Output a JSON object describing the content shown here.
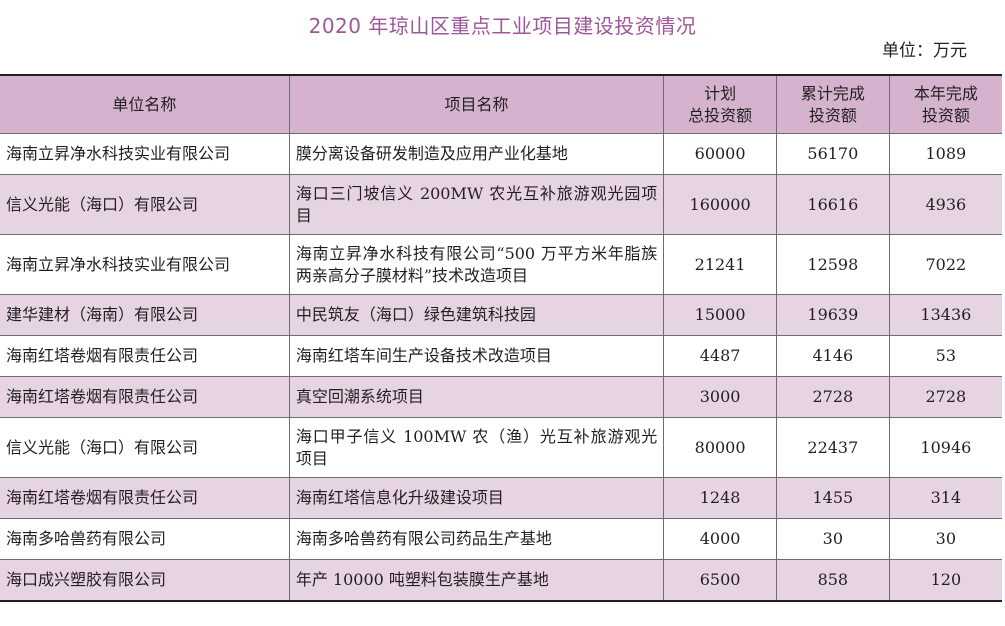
{
  "title": "2020 年琼山区重点工业项目建设投资情况",
  "unit": "单位：万元",
  "table": {
    "headers": [
      {
        "lines": [
          "单位名称"
        ]
      },
      {
        "lines": [
          "项目名称"
        ]
      },
      {
        "lines": [
          "计划",
          "总投资额"
        ]
      },
      {
        "lines": [
          "累计完成",
          "投资额"
        ]
      },
      {
        "lines": [
          "本年完成",
          "投资额"
        ]
      }
    ],
    "rows": [
      {
        "unit": "海南立昇净水科技实业有限公司",
        "project": "膜分离设备研发制造及应用产业化基地",
        "planned": "60000",
        "cumulative": "56170",
        "this_year": "1089"
      },
      {
        "unit": "信义光能（海口）有限公司",
        "project": "海口三门坡信义 200MW 农光互补旅游观光园项目",
        "planned": "160000",
        "cumulative": "16616",
        "this_year": "4936"
      },
      {
        "unit": "海南立昇净水科技实业有限公司",
        "project": "海南立昇净水科技有限公司“500 万平方米年脂族两亲高分子膜材料”技术改造项目",
        "planned": "21241",
        "cumulative": "12598",
        "this_year": "7022"
      },
      {
        "unit": "建华建材（海南）有限公司",
        "project": "中民筑友（海口）绿色建筑科技园",
        "planned": "15000",
        "cumulative": "19639",
        "this_year": "13436"
      },
      {
        "unit": "海南红塔卷烟有限责任公司",
        "project": "海南红塔车间生产设备技术改造项目",
        "planned": "4487",
        "cumulative": "4146",
        "this_year": "53"
      },
      {
        "unit": "海南红塔卷烟有限责任公司",
        "project": "真空回潮系统项目",
        "planned": "3000",
        "cumulative": "2728",
        "this_year": "2728"
      },
      {
        "unit": "信义光能（海口）有限公司",
        "project": "海口甲子信义 100MW 农（渔）光互补旅游观光项目",
        "planned": "80000",
        "cumulative": "22437",
        "this_year": "10946"
      },
      {
        "unit": "海南红塔卷烟有限责任公司",
        "project": "海南红塔信息化升级建设项目",
        "planned": "1248",
        "cumulative": "1455",
        "this_year": "314"
      },
      {
        "unit": "海南多哈兽药有限公司",
        "project": "海南多哈兽药有限公司药品生产基地",
        "planned": "4000",
        "cumulative": "30",
        "this_year": "30"
      },
      {
        "unit": "海口成兴塑胶有限公司",
        "project": "年产 10000 吨塑料包装膜生产基地",
        "planned": "6500",
        "cumulative": "858",
        "this_year": "120"
      }
    ]
  }
}
